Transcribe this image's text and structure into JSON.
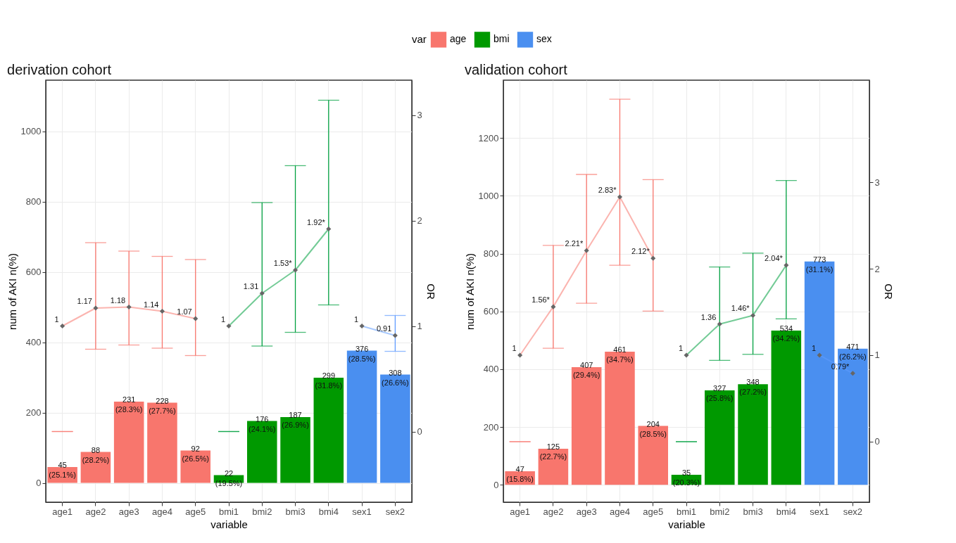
{
  "chart_data": [
    {
      "type": "bar",
      "title": "derivation cohort",
      "xlabel": "variable",
      "ylabel": "num of AKI n(%)",
      "y2label": "OR",
      "legend_title": "var",
      "legend": "top",
      "grid": true,
      "marker": "diamond",
      "categories": [
        "age1",
        "age2",
        "age3",
        "age4",
        "age5",
        "bmi1",
        "bmi2",
        "bmi3",
        "bmi4",
        "sex1",
        "sex2"
      ],
      "ylim": [
        -55,
        1145
      ],
      "yticks": [
        0,
        200,
        400,
        600,
        800,
        1000
      ],
      "y2lim": [
        -0.67,
        3.33
      ],
      "y2ticks": [
        0,
        1,
        2,
        3
      ],
      "series": [
        {
          "name": "age",
          "color": "#f8766d",
          "values": [
            45,
            88,
            231,
            228,
            92,
            null,
            null,
            null,
            null,
            null,
            null
          ],
          "value_labels": [
            "45\n(25.1%)",
            "88\n(28.2%)",
            "231\n(28.3%)",
            "228\n(27.7%)",
            "92\n(26.5%)",
            null,
            null,
            null,
            null,
            null,
            null
          ]
        },
        {
          "name": "bmi",
          "color": "#009900",
          "values": [
            null,
            null,
            null,
            null,
            null,
            22,
            176,
            187,
            299,
            null,
            null
          ],
          "value_labels": [
            null,
            null,
            null,
            null,
            null,
            "22\n(19.5%)",
            "176\n(24.1%)",
            "187\n(26.9%)",
            "299\n(31.8%)",
            null,
            null
          ]
        },
        {
          "name": "sex",
          "color": "#4a8ff0",
          "values": [
            null,
            null,
            null,
            null,
            null,
            null,
            null,
            null,
            null,
            376,
            308
          ],
          "value_labels": [
            null,
            null,
            null,
            null,
            null,
            null,
            null,
            null,
            null,
            "376\n(28.5%)",
            "308\n(26.6%)"
          ]
        },
        {
          "type": "line",
          "axis": "y2",
          "color": "#f8766d",
          "values": [
            1,
            1.17,
            1.18,
            1.14,
            1.07,
            null,
            null,
            null,
            null,
            null,
            null
          ],
          "errors": [
            [
              0,
              0
            ],
            [
              0.78,
              1.79
            ],
            [
              0.82,
              1.71
            ],
            [
              0.79,
              1.66
            ],
            [
              0.72,
              1.63
            ],
            null,
            null,
            null,
            null,
            null,
            null
          ],
          "value_labels": [
            "1",
            "1.17",
            "1.18",
            "1.14",
            "1.07",
            null,
            null,
            null,
            null,
            null,
            null
          ]
        },
        {
          "type": "line",
          "axis": "y2",
          "color": "#00a040",
          "values": [
            null,
            null,
            null,
            null,
            null,
            1,
            1.31,
            1.53,
            1.92,
            null,
            null
          ],
          "errors": [
            null,
            null,
            null,
            null,
            null,
            [
              0,
              0
            ],
            [
              0.81,
              2.17
            ],
            [
              0.94,
              2.52
            ],
            [
              1.2,
              3.14
            ],
            null,
            null
          ],
          "value_labels": [
            null,
            null,
            null,
            null,
            null,
            "1",
            "1.31",
            "1.53*",
            "1.92*",
            null,
            null
          ]
        },
        {
          "type": "line",
          "axis": "y2",
          "color": "#619cff",
          "values": [
            null,
            null,
            null,
            null,
            null,
            null,
            null,
            null,
            null,
            1,
            0.91
          ],
          "errors": [
            null,
            null,
            null,
            null,
            null,
            null,
            null,
            null,
            null,
            null,
            [
              0.76,
              1.1
            ]
          ],
          "value_labels": [
            null,
            null,
            null,
            null,
            null,
            null,
            null,
            null,
            null,
            "1",
            "0.91"
          ]
        }
      ]
    },
    {
      "type": "bar",
      "title": "validation cohort",
      "xlabel": "variable",
      "ylabel": "num of AKI n(%)",
      "y2label": "OR",
      "legend": "top",
      "grid": true,
      "marker": "diamond",
      "categories": [
        "age1",
        "age2",
        "age3",
        "age4",
        "age5",
        "bmi1",
        "bmi2",
        "bmi3",
        "bmi4",
        "sex1",
        "sex2"
      ],
      "ylim": [
        -60,
        1400
      ],
      "yticks": [
        0,
        200,
        400,
        600,
        800,
        1000,
        1200
      ],
      "y2lim": [
        -0.7,
        4.18
      ],
      "y2ticks": [
        0,
        1,
        2,
        3
      ],
      "series": [
        {
          "name": "age",
          "color": "#f8766d",
          "values": [
            47,
            125,
            407,
            461,
            204,
            null,
            null,
            null,
            null,
            null,
            null
          ],
          "value_labels": [
            "47\n(15.8%)",
            "125\n(22.7%)",
            "407\n(29.4%)",
            "461\n(34.7%)",
            "204\n(28.5%)",
            null,
            null,
            null,
            null,
            null,
            null
          ]
        },
        {
          "name": "bmi",
          "color": "#009900",
          "values": [
            null,
            null,
            null,
            null,
            null,
            35,
            327,
            348,
            534,
            null,
            null
          ],
          "value_labels": [
            null,
            null,
            null,
            null,
            null,
            "35\n(20.3%)",
            "327\n(25.8%)",
            "348\n(27.2%)",
            "534\n(34.2%)",
            null,
            null
          ]
        },
        {
          "name": "sex",
          "color": "#4a8ff0",
          "values": [
            null,
            null,
            null,
            null,
            null,
            null,
            null,
            null,
            null,
            773,
            471
          ],
          "value_labels": [
            null,
            null,
            null,
            null,
            null,
            null,
            null,
            null,
            null,
            "773\n(31.1%)",
            "471\n(26.2%)"
          ]
        },
        {
          "type": "line",
          "axis": "y2",
          "color": "#f8766d",
          "values": [
            1,
            1.56,
            2.21,
            2.83,
            2.12,
            null,
            null,
            null,
            null,
            null,
            null
          ],
          "errors": [
            [
              0,
              0
            ],
            [
              1.08,
              2.27
            ],
            [
              1.6,
              3.09
            ],
            [
              2.04,
              3.96
            ],
            [
              1.51,
              3.03
            ],
            null,
            null,
            null,
            null,
            null,
            null
          ],
          "value_labels": [
            "1",
            "1.56*",
            "2.21*",
            "2.83*",
            "2.12*",
            null,
            null,
            null,
            null,
            null,
            null
          ]
        },
        {
          "type": "line",
          "axis": "y2",
          "color": "#00a040",
          "values": [
            null,
            null,
            null,
            null,
            null,
            1,
            1.36,
            1.46,
            2.04,
            null,
            null
          ],
          "errors": [
            null,
            null,
            null,
            null,
            null,
            [
              0,
              0
            ],
            [
              0.94,
              2.02
            ],
            [
              1.01,
              2.18
            ],
            [
              1.42,
              3.02
            ],
            null,
            null
          ],
          "value_labels": [
            null,
            null,
            null,
            null,
            null,
            "1",
            "1.36",
            "1.46*",
            "2.04*",
            null,
            null
          ]
        },
        {
          "type": "line",
          "axis": "y2",
          "color": "#619cff",
          "values": [
            null,
            null,
            null,
            null,
            null,
            null,
            null,
            null,
            null,
            1,
            0.79
          ],
          "value_labels": [
            null,
            null,
            null,
            null,
            null,
            null,
            null,
            null,
            null,
            "1",
            "0.79*"
          ]
        }
      ]
    }
  ]
}
